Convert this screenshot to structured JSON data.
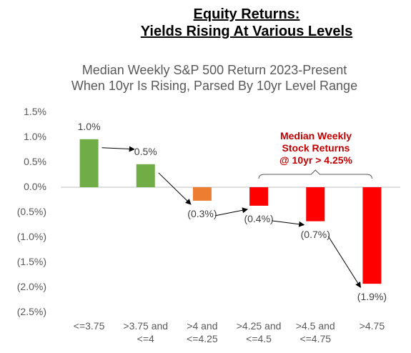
{
  "chart_data": {
    "type": "bar",
    "title": "Equity Returns:\nYields Rising At Various Levels",
    "subtitle": "Median Weekly S&P 500 Return 2023-Present\nWhen 10yr Is Rising, Parsed By 10yr Level Range",
    "annotation": "Median Weekly\nStock Returns\n@ 10yr > 4.25%",
    "categories": [
      "<=3.75",
      ">3.75 and\n<=4",
      ">4 and\n<=4.25",
      ">4.25 and\n<=4.5",
      ">4.5 and\n<=4.75",
      ">4.75"
    ],
    "values": [
      0.96,
      0.46,
      -0.27,
      -0.37,
      -0.68,
      -1.93
    ],
    "value_labels": [
      "1.0%",
      "0.5%",
      "(0.3%)",
      "(0.4%)",
      "(0.7%)",
      "(1.9%)"
    ],
    "colors": [
      "#70ad47",
      "#70ad47",
      "#ed7d31",
      "#ff0000",
      "#ff0000",
      "#ff0000"
    ],
    "ylim": [
      -2.5,
      1.5
    ],
    "yticks": [
      {
        "value": 1.5,
        "label": "1.5%"
      },
      {
        "value": 1.0,
        "label": "1.0%"
      },
      {
        "value": 0.5,
        "label": "0.5%"
      },
      {
        "value": 0,
        "label": "0.0%"
      },
      {
        "value": -0.5,
        "label": "(0.5%)"
      },
      {
        "value": -1.0,
        "label": "(1.0%)"
      },
      {
        "value": -1.5,
        "label": "(1.5%)"
      },
      {
        "value": -2.0,
        "label": "(2.0%)"
      },
      {
        "value": -2.5,
        "label": "(2.5%)"
      }
    ]
  }
}
